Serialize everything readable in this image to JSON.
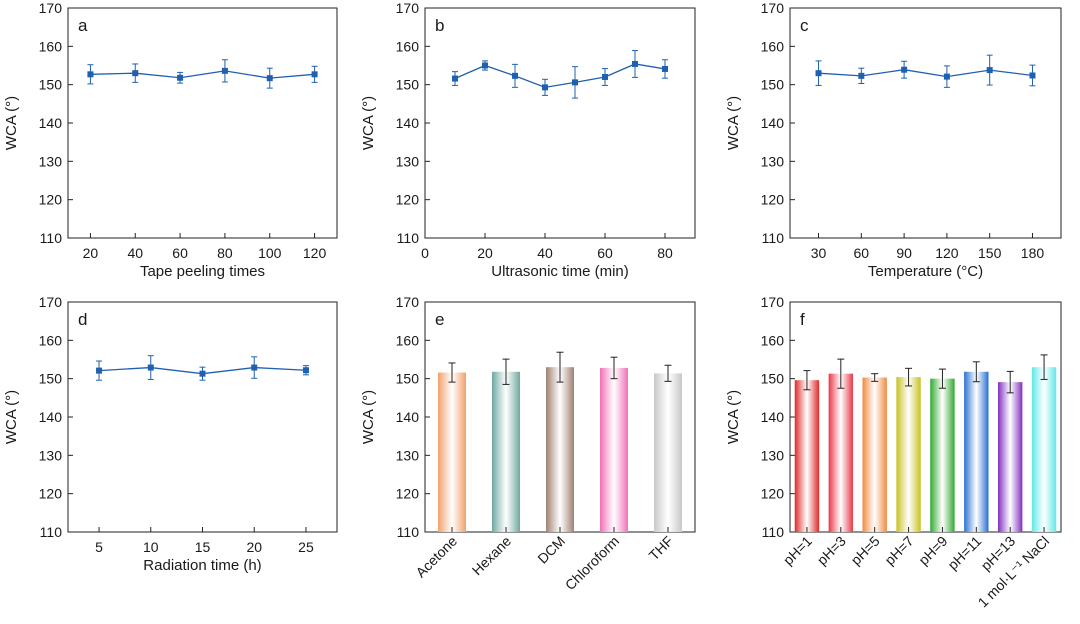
{
  "chart_data": [
    {
      "type": "line",
      "panel_label": "a",
      "xlabel": "Tape peeling times",
      "ylabel": "WCA (°)",
      "ylim": [
        110,
        170
      ],
      "yticks": [
        110,
        120,
        130,
        140,
        150,
        160,
        170
      ],
      "xlim": [
        10,
        130
      ],
      "xticks": [
        20,
        40,
        60,
        80,
        100,
        120
      ],
      "x": [
        20,
        40,
        60,
        80,
        100,
        120
      ],
      "y": [
        152.7,
        153.0,
        151.8,
        153.6,
        151.7,
        152.7
      ],
      "err": [
        2.5,
        2.4,
        1.4,
        2.9,
        2.6,
        2.1
      ],
      "color": "#2060b0"
    },
    {
      "type": "line",
      "panel_label": "b",
      "xlabel": "Ultrasonic time (min)",
      "ylabel": "WCA (°)",
      "ylim": [
        110,
        170
      ],
      "yticks": [
        110,
        120,
        130,
        140,
        150,
        160,
        170
      ],
      "xlim": [
        0,
        90
      ],
      "xticks": [
        0,
        20,
        40,
        60,
        80
      ],
      "x": [
        10,
        20,
        30,
        40,
        50,
        60,
        70,
        80
      ],
      "y": [
        151.6,
        155.0,
        152.3,
        149.3,
        150.6,
        152.0,
        155.4,
        154.1
      ],
      "err": [
        1.8,
        1.2,
        3.0,
        2.1,
        4.1,
        2.2,
        3.5,
        2.4
      ],
      "color": "#2060b0"
    },
    {
      "type": "line",
      "panel_label": "c",
      "xlabel": "Temperature (°C)",
      "ylabel": "WCA (°)",
      "ylim": [
        110,
        170
      ],
      "yticks": [
        110,
        120,
        130,
        140,
        150,
        160,
        170
      ],
      "xlim": [
        10,
        200
      ],
      "xticks": [
        30,
        60,
        90,
        120,
        150,
        180
      ],
      "x": [
        30,
        60,
        90,
        120,
        150,
        180
      ],
      "y": [
        153.0,
        152.3,
        153.9,
        152.1,
        153.8,
        152.4
      ],
      "err": [
        3.2,
        2.0,
        2.2,
        2.8,
        3.9,
        2.7
      ],
      "color": "#2060b0"
    },
    {
      "type": "line",
      "panel_label": "d",
      "xlabel": "Radiation time (h)",
      "ylabel": "WCA (°)",
      "ylim": [
        110,
        170
      ],
      "yticks": [
        110,
        120,
        130,
        140,
        150,
        160,
        170
      ],
      "xlim": [
        2,
        28
      ],
      "xticks": [
        5,
        10,
        15,
        20,
        25
      ],
      "x": [
        5,
        10,
        15,
        20,
        25
      ],
      "y": [
        152.1,
        152.9,
        151.3,
        152.9,
        152.2
      ],
      "err": [
        2.5,
        3.1,
        1.7,
        2.8,
        1.2
      ],
      "color": "#2060b0"
    },
    {
      "type": "bar",
      "panel_label": "e",
      "xlabel": "",
      "ylabel": "WCA (°)",
      "ylim": [
        110,
        170
      ],
      "yticks": [
        110,
        120,
        130,
        140,
        150,
        160,
        170
      ],
      "categories": [
        "Acetone",
        "Hexane",
        "DCM",
        "Chloroform",
        "THF"
      ],
      "values": [
        151.6,
        151.8,
        153.0,
        152.8,
        151.4
      ],
      "err": [
        2.5,
        3.3,
        3.9,
        2.8,
        2.1
      ],
      "colors": [
        "#f3a06a",
        "#6fa8a0",
        "#a08070",
        "#f070b8",
        "#c8c8c8"
      ]
    },
    {
      "type": "bar",
      "panel_label": "f",
      "xlabel": "",
      "ylabel": "WCA (°)",
      "ylim": [
        110,
        170
      ],
      "yticks": [
        110,
        120,
        130,
        140,
        150,
        160,
        170
      ],
      "categories": [
        "pH=1",
        "pH=3",
        "pH=5",
        "pH=7",
        "pH=9",
        "pH=11",
        "pH=13",
        "1 mol·L⁻¹ NaCl"
      ],
      "values": [
        149.6,
        151.3,
        150.3,
        150.4,
        150.0,
        151.8,
        149.1,
        153.0
      ],
      "err": [
        2.5,
        3.8,
        1.0,
        2.3,
        2.5,
        2.6,
        2.8,
        3.2
      ],
      "colors": [
        "#e02828",
        "#e83848",
        "#f08a40",
        "#c8c020",
        "#30a830",
        "#2870d0",
        "#8030c0",
        "#60e8e8"
      ]
    }
  ]
}
